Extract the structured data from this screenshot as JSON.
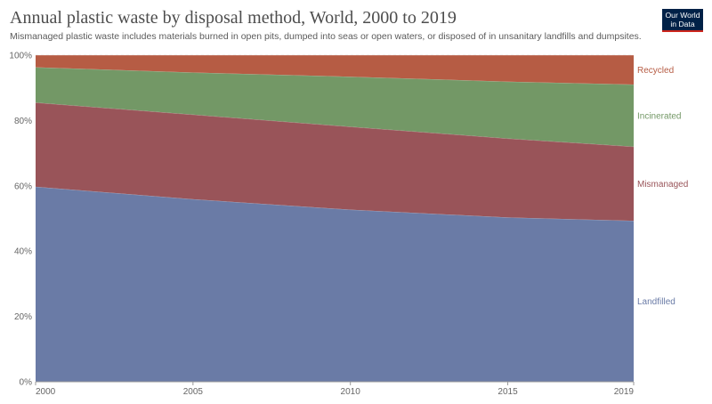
{
  "header": {
    "title": "Annual plastic waste by disposal method, World, 2000 to 2019",
    "subtitle": "Mismanaged plastic waste includes materials burned in open pits, dumped into seas or open waters, or disposed of in unsanitary landfills and dumpsites."
  },
  "logo": {
    "line1": "Our World",
    "line2": "in Data"
  },
  "chart_data": {
    "type": "area",
    "stacked": true,
    "x": [
      2000,
      2005,
      2010,
      2015,
      2019
    ],
    "x_ticks": [
      "2000",
      "2005",
      "2010",
      "2015",
      "2019"
    ],
    "y_ticks": [
      "0%",
      "20%",
      "40%",
      "60%",
      "80%",
      "100%"
    ],
    "ylim": [
      0,
      100
    ],
    "grid": true,
    "legend": "right-inline",
    "series": [
      {
        "name": "Landfilled",
        "color": "#6a7ba6",
        "values": [
          59.7,
          55.9,
          52.7,
          50.3,
          49.3
        ]
      },
      {
        "name": "Mismanaged",
        "color": "#995459",
        "values": [
          25.8,
          25.9,
          25.4,
          24.2,
          22.7
        ]
      },
      {
        "name": "Incinerated",
        "color": "#739866",
        "values": [
          10.8,
          12.9,
          15.3,
          17.4,
          19.0
        ]
      },
      {
        "name": "Recycled",
        "color": "#b65c44",
        "values": [
          3.7,
          5.3,
          6.6,
          8.1,
          9.0
        ]
      }
    ]
  }
}
